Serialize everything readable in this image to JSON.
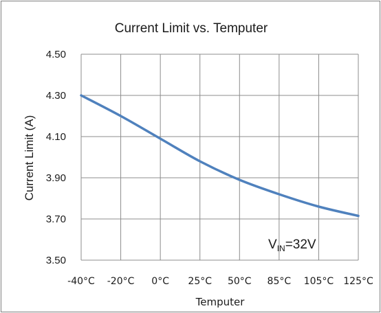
{
  "chart_data": {
    "type": "line",
    "title": "Current Limit vs. Temputer",
    "xlabel": "Temputer",
    "ylabel": "Current Limit (A)",
    "categories": [
      "-40°C",
      "-20°C",
      "0°C",
      "25°C",
      "50°C",
      "85°C",
      "105°C",
      "125°C"
    ],
    "ylim": [
      3.5,
      4.5
    ],
    "yticks": [
      "4.50",
      "4.30",
      "4.10",
      "3.90",
      "3.70",
      "3.50"
    ],
    "ytick_values": [
      4.5,
      4.3,
      4.1,
      3.9,
      3.7,
      3.5
    ],
    "grid": true,
    "series": [
      {
        "values": [
          4.3,
          4.2,
          4.09,
          3.98,
          3.89,
          3.82,
          3.76,
          3.715
        ],
        "color": "#4f81bd"
      }
    ],
    "annotation": {
      "main": "V",
      "sub": "IN",
      "rest": "=32V"
    }
  }
}
